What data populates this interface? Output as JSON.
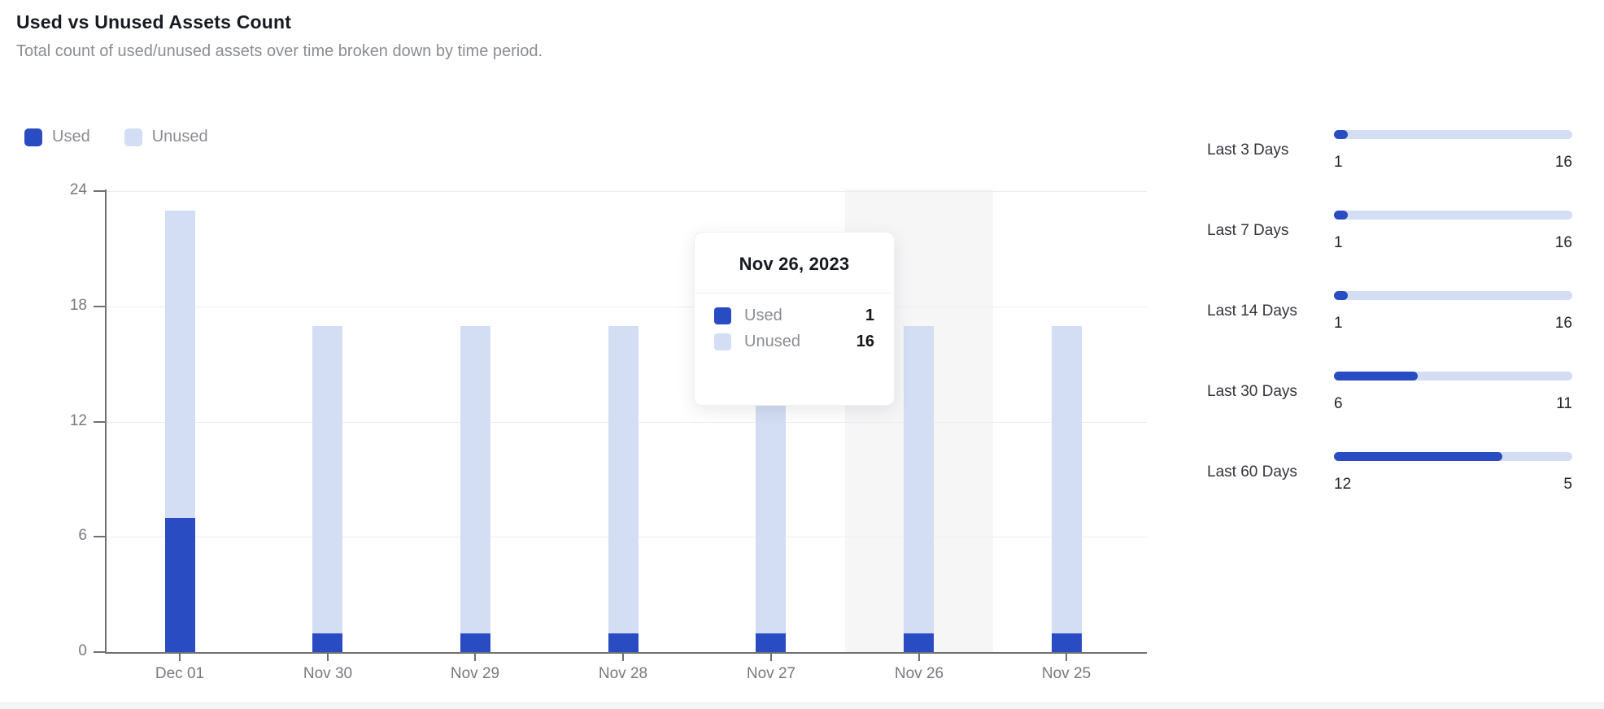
{
  "header": {
    "title": "Used vs Unused Assets Count",
    "subtitle": "Total count of used/unused assets over time broken down by time period."
  },
  "colors": {
    "used": "#2a4cc2",
    "unused": "#d3ddf3",
    "highlight_band": "#f6f6f7",
    "axis": "#6f7073",
    "gridline": "#ededee"
  },
  "legend": [
    {
      "label": "Used",
      "color": "#2a4cc2"
    },
    {
      "label": "Unused",
      "color": "#d3ddf3"
    }
  ],
  "chart_data": {
    "type": "bar",
    "stacked": true,
    "title": "Used vs Unused Assets Count",
    "categories": [
      "Dec 01",
      "Nov 30",
      "Nov 29",
      "Nov 28",
      "Nov 27",
      "Nov 26",
      "Nov 25"
    ],
    "series": [
      {
        "name": "Used",
        "color": "#2a4cc2",
        "values": [
          7,
          1,
          1,
          1,
          1,
          1,
          1
        ]
      },
      {
        "name": "Unused",
        "color": "#d3ddf3",
        "values": [
          16,
          16,
          16,
          16,
          16,
          16,
          16
        ]
      }
    ],
    "ylim": [
      0,
      24
    ],
    "yticks": [
      0,
      6,
      12,
      18,
      24
    ],
    "grid": true,
    "legend_position": "top-left",
    "highlight_category": "Nov 26"
  },
  "tooltip": {
    "title": "Nov 26, 2023",
    "rows": [
      {
        "label": "Used",
        "value": "1",
        "color": "#2a4cc2"
      },
      {
        "label": "Unused",
        "value": "16",
        "color": "#d3ddf3"
      }
    ]
  },
  "summary": {
    "rows": [
      {
        "label": "Last 3 Days",
        "used": 1,
        "unused": 16
      },
      {
        "label": "Last 7 Days",
        "used": 1,
        "unused": 16
      },
      {
        "label": "Last 14 Days",
        "used": 1,
        "unused": 16
      },
      {
        "label": "Last 30 Days",
        "used": 6,
        "unused": 11
      },
      {
        "label": "Last 60 Days",
        "used": 12,
        "unused": 5
      }
    ]
  }
}
